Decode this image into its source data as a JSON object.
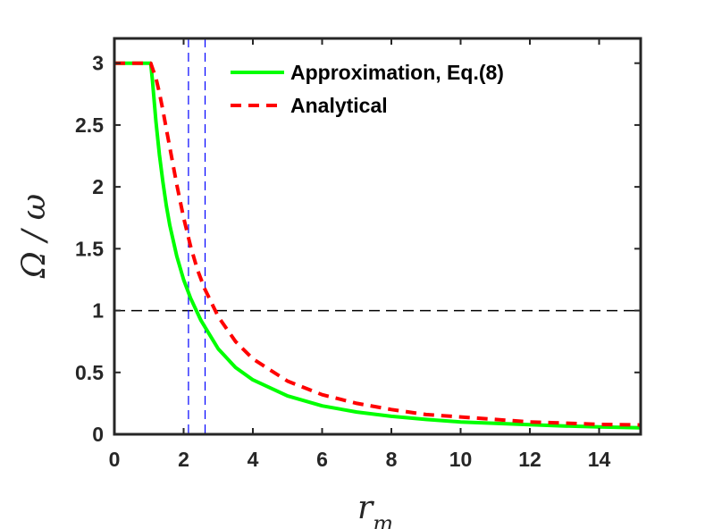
{
  "chart_data": {
    "type": "line",
    "title": "",
    "xlabel": "r",
    "xlabel_sub": "m",
    "ylabel": "Ω / ω",
    "xlim": [
      0,
      15.2
    ],
    "ylim": [
      0,
      3.2
    ],
    "xticks": [
      0,
      2,
      4,
      6,
      8,
      10,
      12,
      14
    ],
    "yticks": [
      0,
      0.5,
      1,
      1.5,
      2,
      2.5,
      3
    ],
    "ytick_labels": [
      "0",
      "0.5",
      "1",
      "1.5",
      "2",
      "2.5",
      "3"
    ],
    "grid": false,
    "legend_position": "top-right",
    "series": [
      {
        "name": "Approximation, Eq.(8)",
        "color": "#00ff00",
        "style": "solid",
        "x": [
          0,
          1.05,
          1.1,
          1.2,
          1.3,
          1.4,
          1.5,
          1.6,
          1.8,
          2.0,
          2.2,
          2.5,
          3.0,
          3.5,
          4.0,
          5.0,
          6.0,
          7.0,
          8.0,
          9.0,
          10.0,
          11.0,
          12.0,
          13.0,
          14.0,
          15.2
        ],
        "y": [
          3.0,
          3.0,
          2.86,
          2.53,
          2.26,
          2.04,
          1.85,
          1.69,
          1.44,
          1.25,
          1.1,
          0.92,
          0.69,
          0.54,
          0.44,
          0.31,
          0.23,
          0.18,
          0.145,
          0.12,
          0.1,
          0.088,
          0.077,
          0.067,
          0.059,
          0.052
        ]
      },
      {
        "name": "Analytical",
        "color": "#ff0000",
        "style": "dashed",
        "x": [
          0,
          1.05,
          1.1,
          1.2,
          1.3,
          1.4,
          1.5,
          1.6,
          1.8,
          2.0,
          2.2,
          2.4,
          2.6,
          3.0,
          3.5,
          4.0,
          5.0,
          6.0,
          7.0,
          8.0,
          9.0,
          10.0,
          11.0,
          12.0,
          13.0,
          14.0,
          15.2
        ],
        "y": [
          3.0,
          3.0,
          2.96,
          2.88,
          2.76,
          2.62,
          2.47,
          2.32,
          2.02,
          1.75,
          1.52,
          1.33,
          1.18,
          0.95,
          0.75,
          0.61,
          0.43,
          0.32,
          0.25,
          0.2,
          0.16,
          0.14,
          0.12,
          0.1,
          0.09,
          0.08,
          0.075
        ]
      }
    ],
    "reference_lines": {
      "horizontal": [
        {
          "y": 1,
          "color": "#000000"
        }
      ],
      "vertical": [
        {
          "x": 2.14,
          "color": "#0000ff"
        },
        {
          "x": 2.62,
          "color": "#0000ff"
        }
      ]
    }
  }
}
